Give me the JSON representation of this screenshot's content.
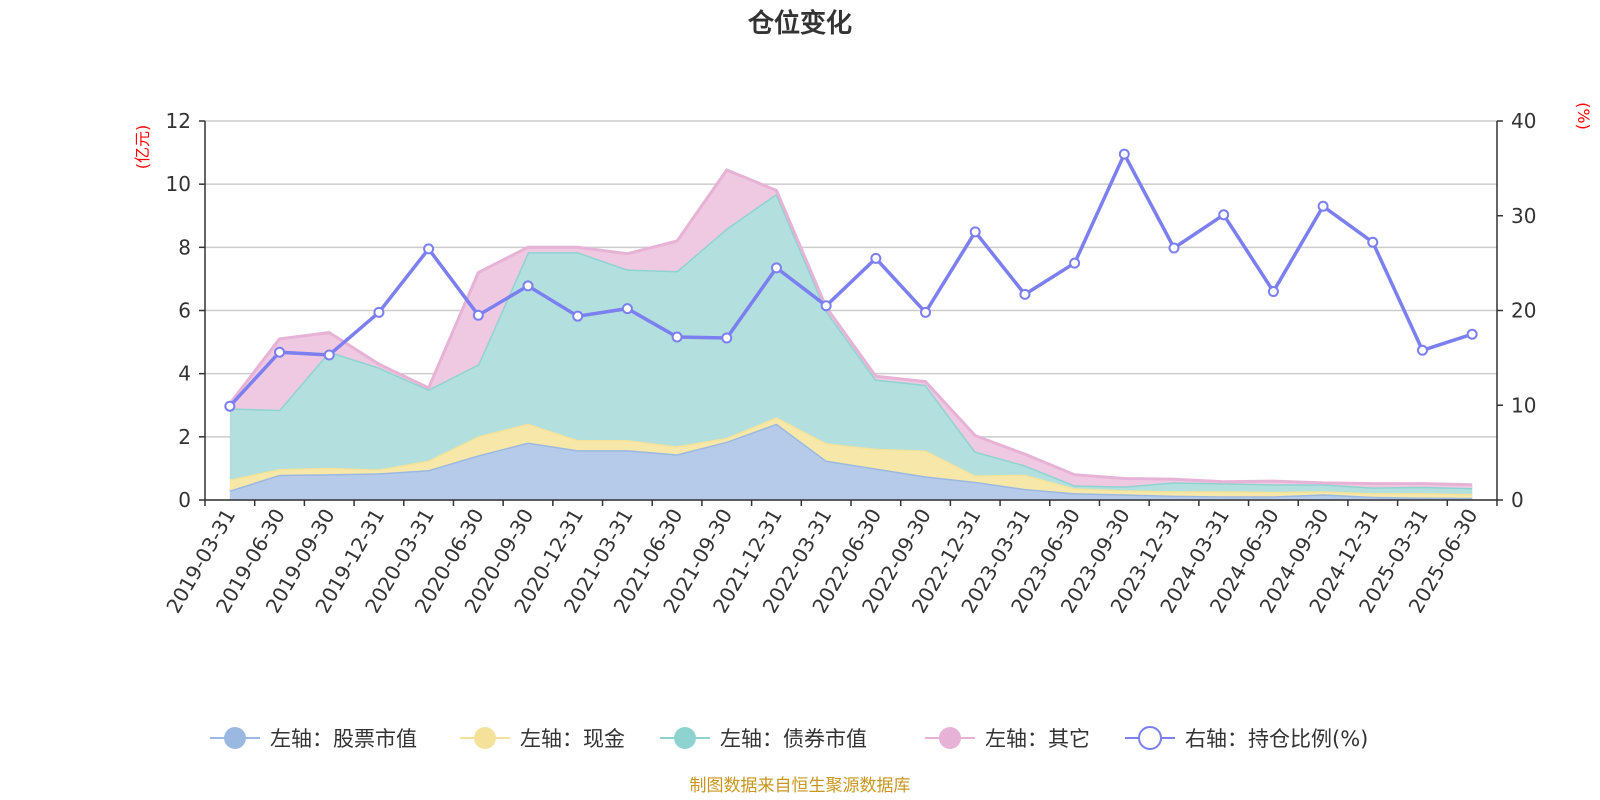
{
  "chart_data": {
    "type": "area",
    "title": "仓位变化",
    "left_axis_unit": "(亿元)",
    "right_axis_unit": "(%)",
    "left_ylim": [
      0,
      12
    ],
    "left_yticks": [
      0,
      2,
      4,
      6,
      8,
      10,
      12
    ],
    "right_ylim": [
      0,
      40
    ],
    "right_yticks": [
      0,
      10,
      20,
      30,
      40
    ],
    "grid": true,
    "legend_position": "bottom",
    "categories": [
      "2019-03-31",
      "2019-06-30",
      "2019-09-30",
      "2019-12-31",
      "2020-03-31",
      "2020-06-30",
      "2020-09-30",
      "2020-12-31",
      "2021-03-31",
      "2021-06-30",
      "2021-09-30",
      "2021-12-31",
      "2022-03-31",
      "2022-06-30",
      "2022-09-30",
      "2022-12-31",
      "2023-03-31",
      "2023-06-30",
      "2023-09-30",
      "2023-12-31",
      "2024-03-31",
      "2024-06-30",
      "2024-09-30",
      "2024-12-31",
      "2025-03-31",
      "2025-06-30"
    ],
    "series": [
      {
        "name": "左轴：股票市值",
        "axis": "left",
        "stack": true,
        "color": "#9bb8e0",
        "fill": "#b6cbea",
        "values": [
          0.3,
          0.8,
          0.82,
          0.85,
          0.95,
          1.42,
          1.82,
          1.58,
          1.58,
          1.45,
          1.85,
          2.42,
          1.25,
          1.0,
          0.75,
          0.58,
          0.35,
          0.22,
          0.18,
          0.14,
          0.12,
          0.12,
          0.18,
          0.1,
          0.08,
          0.07
        ]
      },
      {
        "name": "左轴：现金",
        "axis": "left",
        "stack": true,
        "color": "#f5e29a",
        "fill": "#f7e8aa",
        "values": [
          0.35,
          0.18,
          0.2,
          0.12,
          0.3,
          0.6,
          0.6,
          0.32,
          0.32,
          0.25,
          0.12,
          0.2,
          0.55,
          0.62,
          0.82,
          0.2,
          0.45,
          0.15,
          0.13,
          0.14,
          0.16,
          0.14,
          0.1,
          0.12,
          0.14,
          0.12
        ]
      },
      {
        "name": "左轴：债券市值",
        "axis": "left",
        "stack": true,
        "color": "#8fd3d0",
        "fill": "#b3e0de",
        "values": [
          2.25,
          1.88,
          3.68,
          3.23,
          2.25,
          2.28,
          5.43,
          5.95,
          5.4,
          5.55,
          6.63,
          7.08,
          4.2,
          2.2,
          2.08,
          0.76,
          0.3,
          0.1,
          0.12,
          0.28,
          0.25,
          0.24,
          0.22,
          0.18,
          0.2,
          0.19
        ]
      },
      {
        "name": "左轴：其它",
        "axis": "left",
        "stack": true,
        "color": "#e6b3d6",
        "fill": "#efc9e2",
        "values": [
          0.15,
          2.24,
          0.6,
          0.1,
          0.05,
          2.9,
          0.15,
          0.15,
          0.5,
          0.95,
          1.85,
          0.1,
          0.1,
          0.1,
          0.1,
          0.5,
          0.35,
          0.33,
          0.25,
          0.1,
          0.05,
          0.1,
          0.04,
          0.12,
          0.1,
          0.1
        ]
      },
      {
        "name": "右轴：持仓比例(%)",
        "axis": "right",
        "stack": false,
        "color": "#7b7ff0",
        "values": [
          9.9,
          15.6,
          15.3,
          19.8,
          26.5,
          19.5,
          22.6,
          19.4,
          20.2,
          17.2,
          17.1,
          24.5,
          20.5,
          25.5,
          19.8,
          28.3,
          21.7,
          25.0,
          36.5,
          26.6,
          30.1,
          22.0,
          31.0,
          27.2,
          15.8,
          17.5
        ]
      }
    ],
    "source_note": "制图数据来自恒生聚源数据库"
  }
}
